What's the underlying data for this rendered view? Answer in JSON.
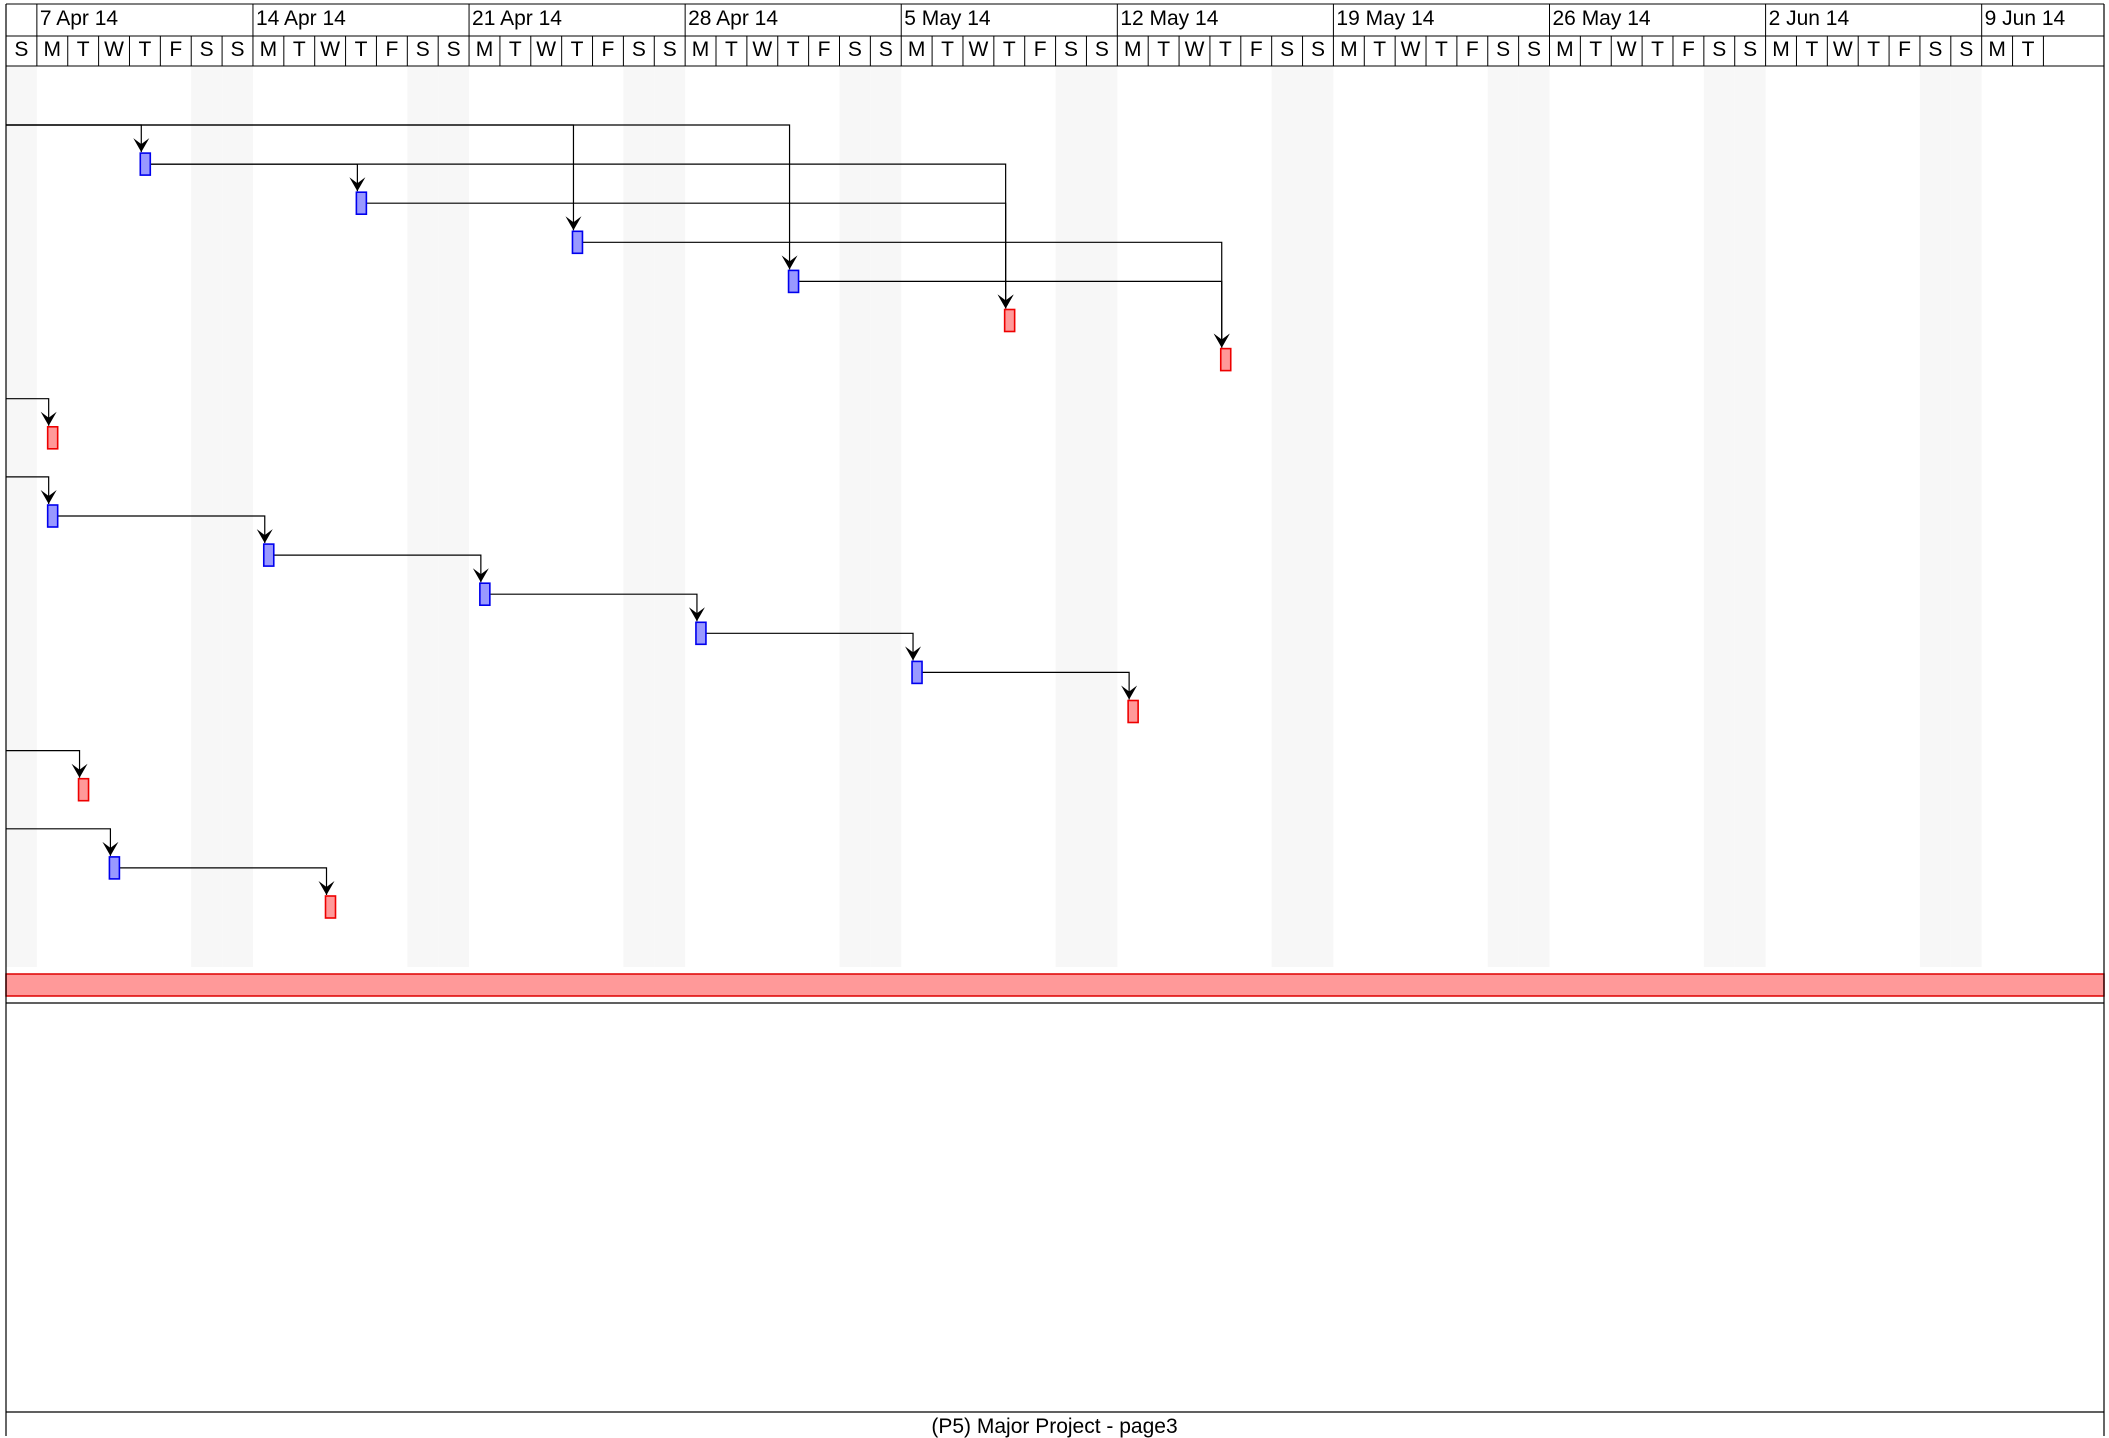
{
  "timescale": {
    "start_date": "2014-04-06",
    "day_letters": [
      "S",
      "M",
      "T",
      "W",
      "T",
      "F",
      "S"
    ],
    "weeks": [
      "7 Apr 14",
      "14 Apr 14",
      "21 Apr 14",
      "28 Apr 14",
      "5 May 14",
      "12 May 14",
      "19 May 14",
      "26 May 14",
      "2 Jun 14",
      "9 Jun 14"
    ]
  },
  "colors": {
    "task_fill": "#9999ff",
    "task_stroke": "#0000ee",
    "milestone_fill": "#ff9999",
    "milestone_stroke": "#ee0000",
    "weekend_shade": "#f7f7f7",
    "summary_fill": "#ff9999",
    "summary_stroke": "#dd0000"
  },
  "tasks": [
    {
      "row": 1,
      "date": "2014-04-10",
      "kind": "task"
    },
    {
      "row": 2,
      "date": "2014-04-17",
      "kind": "task"
    },
    {
      "row": 3,
      "date": "2014-04-24",
      "kind": "task"
    },
    {
      "row": 4,
      "date": "2014-05-01",
      "kind": "task"
    },
    {
      "row": 5,
      "date": "2014-05-08",
      "kind": "milestone"
    },
    {
      "row": 6,
      "date": "2014-05-15",
      "kind": "milestone"
    },
    {
      "row": 8,
      "date": "2014-04-07",
      "kind": "milestone"
    },
    {
      "row": 10,
      "date": "2014-04-07",
      "kind": "task"
    },
    {
      "row": 11,
      "date": "2014-04-14",
      "kind": "task"
    },
    {
      "row": 12,
      "date": "2014-04-21",
      "kind": "task"
    },
    {
      "row": 13,
      "date": "2014-04-28",
      "kind": "task"
    },
    {
      "row": 14,
      "date": "2014-05-05",
      "kind": "task"
    },
    {
      "row": 15,
      "date": "2014-05-12",
      "kind": "milestone"
    },
    {
      "row": 17,
      "date": "2014-04-08",
      "kind": "milestone"
    },
    {
      "row": 19,
      "date": "2014-04-09",
      "kind": "task"
    },
    {
      "row": 20,
      "date": "2014-04-16",
      "kind": "milestone"
    }
  ],
  "links": [
    {
      "from_row": 0,
      "from_date": "2014-04-06",
      "to_row": 1,
      "to_date": "2014-04-10"
    },
    {
      "from_row": 0,
      "from_date": "2014-04-06",
      "to_row": 3,
      "to_date": "2014-04-24"
    },
    {
      "from_row": 0,
      "from_date": "2014-04-06",
      "to_row": 4,
      "to_date": "2014-05-01"
    },
    {
      "from_row": 1,
      "from_date": "2014-04-10",
      "to_row": 2,
      "to_date": "2014-04-17"
    },
    {
      "from_row": 1,
      "from_date": "2014-04-10",
      "to_row": 5,
      "to_date": "2014-05-08"
    },
    {
      "from_row": 2,
      "from_date": "2014-04-17",
      "to_row": 5,
      "to_date": "2014-05-08"
    },
    {
      "from_row": 3,
      "from_date": "2014-04-24",
      "to_row": 6,
      "to_date": "2014-05-15"
    },
    {
      "from_row": 4,
      "from_date": "2014-05-01",
      "to_row": 6,
      "to_date": "2014-05-15"
    },
    {
      "from_row": 7,
      "from_date": "2014-04-06",
      "to_row": 8,
      "to_date": "2014-04-07"
    },
    {
      "from_row": 9,
      "from_date": "2014-04-06",
      "to_row": 10,
      "to_date": "2014-04-07"
    },
    {
      "from_row": 10,
      "from_date": "2014-04-07",
      "to_row": 11,
      "to_date": "2014-04-14"
    },
    {
      "from_row": 11,
      "from_date": "2014-04-14",
      "to_row": 12,
      "to_date": "2014-04-21"
    },
    {
      "from_row": 12,
      "from_date": "2014-04-21",
      "to_row": 13,
      "to_date": "2014-04-28"
    },
    {
      "from_row": 13,
      "from_date": "2014-04-28",
      "to_row": 14,
      "to_date": "2014-05-05"
    },
    {
      "from_row": 14,
      "from_date": "2014-05-05",
      "to_row": 15,
      "to_date": "2014-05-12"
    },
    {
      "from_row": 16,
      "from_date": "2014-04-06",
      "to_row": 17,
      "to_date": "2014-04-08"
    },
    {
      "from_row": 18,
      "from_date": "2014-04-06",
      "to_row": 19,
      "to_date": "2014-04-09"
    },
    {
      "from_row": 19,
      "from_date": "2014-04-09",
      "to_row": 20,
      "to_date": "2014-04-16"
    }
  ],
  "footer": {
    "title": "(P5) Major Project  -  page3"
  }
}
